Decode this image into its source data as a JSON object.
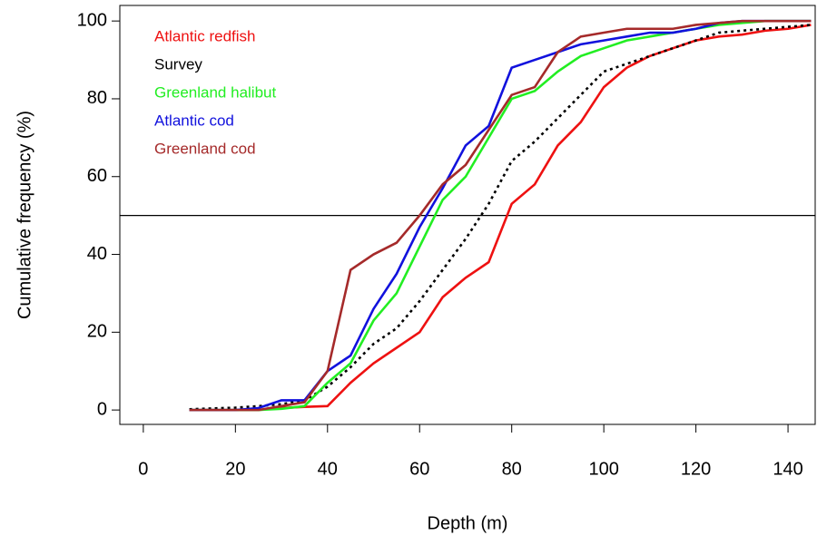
{
  "chart_data": {
    "type": "line",
    "xlabel": "Depth (m)",
    "ylabel": "Cumulative frequency (%)",
    "x": [
      10,
      15,
      20,
      25,
      30,
      35,
      40,
      45,
      50,
      55,
      60,
      65,
      70,
      75,
      80,
      85,
      90,
      95,
      100,
      105,
      110,
      115,
      120,
      125,
      130,
      135,
      140,
      145
    ],
    "series": [
      {
        "name": "Atlantic redfish",
        "color": "#ee1111",
        "dash": false,
        "values": [
          0,
          0,
          0,
          0,
          0.5,
          0.8,
          1,
          7,
          12,
          16,
          20,
          29,
          34,
          38,
          53,
          58,
          68,
          74,
          83,
          88,
          91,
          93,
          95,
          96,
          96.5,
          97.5,
          98,
          99
        ]
      },
      {
        "name": "Survey",
        "color": "#000000",
        "dash": true,
        "values": [
          0.2,
          0.4,
          0.6,
          1,
          1.5,
          2.5,
          6,
          11,
          17,
          21,
          28,
          36,
          44,
          53,
          64,
          69,
          75,
          81,
          87,
          89,
          91,
          93,
          95,
          97,
          97.5,
          98,
          98.5,
          99
        ]
      },
      {
        "name": "Greenland halibut",
        "color": "#22ee22",
        "dash": false,
        "values": [
          0,
          0,
          0,
          0,
          0.3,
          1,
          7,
          12,
          23,
          30,
          42,
          54,
          60,
          70,
          80,
          82,
          87,
          91,
          93,
          95,
          96,
          97,
          98,
          99,
          99.5,
          100,
          100,
          100
        ]
      },
      {
        "name": "Atlantic cod",
        "color": "#1111dd",
        "dash": false,
        "values": [
          0,
          0,
          0,
          0.5,
          2.5,
          2.5,
          10,
          14,
          26,
          35,
          47,
          57,
          68,
          73,
          88,
          90,
          92,
          94,
          95,
          96,
          97,
          97,
          98,
          99.5,
          100,
          100,
          100,
          100
        ]
      },
      {
        "name": "Greenland cod",
        "color": "#a52a2a",
        "dash": false,
        "values": [
          0,
          0,
          0,
          0,
          1,
          2,
          10,
          36,
          40,
          43,
          50,
          58,
          63,
          72,
          81,
          83,
          92,
          96,
          97,
          98,
          98,
          98,
          99,
          99.5,
          100,
          100,
          100,
          100
        ]
      }
    ],
    "reference_line": 50,
    "xlim": [
      -5.1,
      145.9
    ],
    "xticks": [
      0,
      20,
      40,
      60,
      80,
      100,
      120,
      140
    ],
    "ylim": [
      -3.7,
      104
    ],
    "yticks": [
      0,
      20,
      40,
      60,
      80,
      100
    ]
  }
}
